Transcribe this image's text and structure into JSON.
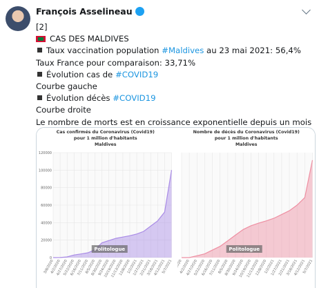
{
  "tweet": {
    "author": "François Asselineau",
    "lines": [
      [
        "[2]"
      ],
      [
        "CAS DES MALDIVES"
      ],
      [
        "Taux vaccination population ",
        "#Maldives",
        " au 23 mai 2021: 56,4%"
      ],
      [
        "Taux France pour comparaison: 33,71%"
      ],
      [
        "Évolution cas de ",
        "#COVID19"
      ],
      [
        "Courbe gauche"
      ],
      [
        "Évolution décès ",
        "#COVID19"
      ],
      [
        "Courbe droite"
      ],
      [
        "Le nombre de morts est en croissance exponentielle depuis un mois"
      ]
    ]
  },
  "chart_data": [
    {
      "type": "area",
      "title": [
        "Cas confirmés du Coronavirus (Covid19)",
        "pour 1 million d'habitants",
        "Maldives"
      ],
      "watermark": "Politologue",
      "color": "#a98be6",
      "categories": [
        "3/8/2020",
        "4/2/2020",
        "4/27/2020",
        "5/22/2020",
        "6/16/2020",
        "7/11/2020",
        "8/5/2020",
        "8/30/2020",
        "9/24/2020",
        "10/19/2020",
        "11/13/2020",
        "12/8/2020",
        "1/2/2021",
        "1/27/2021",
        "2/21/2021",
        "3/18/2021",
        "4/12/2021",
        "5/7/2021"
      ],
      "values": [
        0,
        50,
        800,
        3000,
        4200,
        5500,
        9000,
        17000,
        19500,
        22000,
        23500,
        25000,
        27000,
        30000,
        36000,
        42000,
        52000,
        100000
      ],
      "ylim": [
        0,
        120000
      ],
      "yticks": [
        0,
        20000,
        40000,
        60000,
        80000,
        100000,
        120000
      ],
      "grid": true
    },
    {
      "type": "area",
      "title": [
        "Nombre de décès du Coronavirus (Covid19)",
        "pour 1 million d'habitants",
        "Maldives"
      ],
      "watermark": "Politologue",
      "color": "#ee8fa2",
      "categories": [
        "3/8/2020",
        "4/2/2020",
        "4/27/2020",
        "5/22/2020",
        "6/16/2020",
        "7/11/2020",
        "8/5/2020",
        "8/30/2020",
        "9/24/2020",
        "10/19/2020",
        "11/13/2020",
        "12/8/2020",
        "1/2/2021",
        "1/27/2021",
        "2/21/2021",
        "3/18/2021",
        "4/12/2021",
        "5/7/2021"
      ],
      "values": [
        0,
        0,
        5,
        10,
        20,
        30,
        45,
        60,
        75,
        85,
        92,
        98,
        105,
        115,
        125,
        140,
        160,
        260
      ],
      "ylim": [
        0,
        280
      ],
      "grid": true
    }
  ]
}
